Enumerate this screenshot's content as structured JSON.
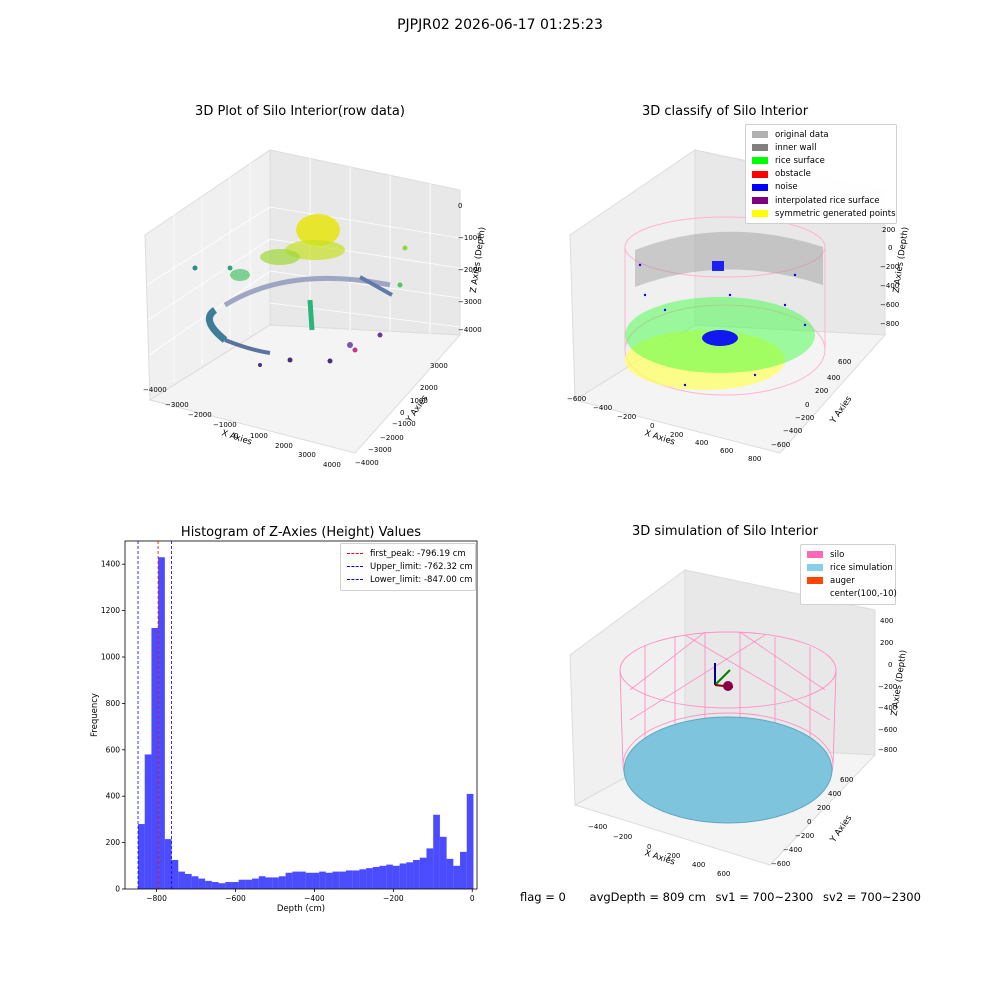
{
  "suptitle": "PJPJR02 2026-06-17 01:25:23",
  "panels": {
    "raw": {
      "title": "3D Plot of Silo Interior(row data)",
      "xlabel": "X Axies",
      "ylabel": "Y Axies",
      "zlabel": "Z Axies (Depth)",
      "xticks": [
        "−4000",
        "−3000",
        "−2000",
        "−1000",
        "0",
        "1000",
        "2000",
        "3000",
        "4000"
      ],
      "yticks": [
        "3000",
        "2000",
        "1000",
        "0",
        "−1000",
        "−2000",
        "−3000",
        "−4000"
      ],
      "zticks": [
        "0",
        "−1000",
        "−2000",
        "−3000",
        "−4000"
      ]
    },
    "classify": {
      "title": "3D classify of Silo Interior",
      "xlabel": "X Axies",
      "ylabel": "Y Axies",
      "zlabel": "Z Axies (Depth)",
      "xticks": [
        "−600",
        "−400",
        "−200",
        "0",
        "200",
        "400",
        "600",
        "800"
      ],
      "yticks": [
        "600",
        "400",
        "200",
        "0",
        "−200",
        "−400",
        "−600"
      ],
      "zticks": [
        "200",
        "0",
        "−200",
        "−400",
        "−600",
        "−800"
      ],
      "legend": [
        {
          "label": "original data",
          "color": "#b0b0b0"
        },
        {
          "label": "inner wall",
          "color": "#808080"
        },
        {
          "label": "rice surface",
          "color": "#00ff00"
        },
        {
          "label": "obstacle",
          "color": "#ff0000"
        },
        {
          "label": "noise",
          "color": "#0000ff"
        },
        {
          "label": "interpolated rice surface",
          "color": "#800080"
        },
        {
          "label": "symmetric generated points",
          "color": "#ffff00"
        }
      ]
    },
    "simulation": {
      "title": "3D simulation of Silo Interior",
      "xlabel": "X Axies",
      "ylabel": "Y Axies",
      "zlabel": "Z Axies (Depth)",
      "xticks": [
        "−400",
        "−200",
        "0",
        "200",
        "400",
        "600"
      ],
      "yticks": [
        "600",
        "400",
        "200",
        "0",
        "−200",
        "−400",
        "−600"
      ],
      "zticks": [
        "400",
        "200",
        "0",
        "−200",
        "−400",
        "−600",
        "−800"
      ],
      "legend": [
        {
          "label": "silo",
          "color": "#ff69b4"
        },
        {
          "label": "rice simulation",
          "color": "#87ceeb"
        },
        {
          "label": "auger",
          "color": "#ff4500"
        },
        {
          "label": "center(100,-10)",
          "color": ""
        }
      ]
    }
  },
  "chart_data": {
    "type": "bar",
    "title": "Histogram of Z-Axies (Height) Values",
    "xlabel": "Depth (cm)",
    "ylabel": "Frequency",
    "xlim": [
      -880,
      12
    ],
    "ylim": [
      0,
      1500
    ],
    "xticks": [
      -800,
      -600,
      -400,
      -200,
      0
    ],
    "xtick_labels": [
      "−800",
      "−600",
      "−400",
      "−200",
      "0"
    ],
    "yticks": [
      0,
      200,
      400,
      600,
      800,
      1000,
      1200,
      1400
    ],
    "bar_color": "#0000ff",
    "bin_width": 17,
    "bin_starts": [
      -847,
      -830,
      -813,
      -796,
      -779,
      -762,
      -745,
      -728,
      -711,
      -694,
      -677,
      -660,
      -643,
      -626,
      -609,
      -592,
      -575,
      -558,
      -541,
      -524,
      -507,
      -490,
      -473,
      -456,
      -439,
      -422,
      -405,
      -388,
      -371,
      -354,
      -337,
      -320,
      -303,
      -286,
      -269,
      -252,
      -235,
      -218,
      -201,
      -184,
      -167,
      -150,
      -133,
      -116,
      -99,
      -82,
      -65,
      -48,
      -31,
      -14
    ],
    "counts": [
      280,
      580,
      1125,
      1430,
      215,
      125,
      75,
      65,
      55,
      45,
      35,
      30,
      25,
      30,
      30,
      40,
      40,
      45,
      55,
      50,
      50,
      55,
      70,
      75,
      75,
      70,
      70,
      75,
      70,
      75,
      75,
      80,
      80,
      85,
      90,
      95,
      100,
      105,
      100,
      110,
      115,
      125,
      135,
      175,
      320,
      225,
      130,
      100,
      160,
      410
    ],
    "vlines": [
      {
        "x": -796.19,
        "color": "#ff0000",
        "label": "first_peak: -796.19 cm"
      },
      {
        "x": -762.32,
        "color": "#0000ff",
        "label": "Upper_limit: -762.32 cm"
      },
      {
        "x": -847.0,
        "color": "#0000ff",
        "label": "Lower_limit: -847.00 cm"
      }
    ],
    "legend_position": "top-right"
  },
  "footer": {
    "flag": "flag = 0",
    "avg": "avgDepth = 809 cm",
    "sv1": "sv1 = 700~2300",
    "sv2": "sv2 = 700~2300"
  }
}
